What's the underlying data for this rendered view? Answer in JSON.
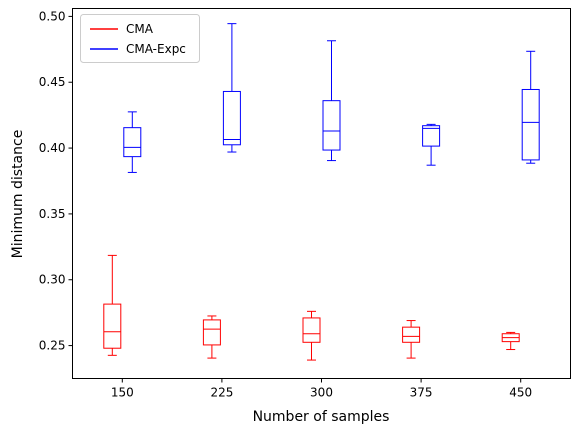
{
  "chart_data": {
    "type": "box",
    "xlabel": "Number of samples",
    "ylabel": "Minimum distance",
    "categories": [
      "150",
      "225",
      "300",
      "375",
      "450"
    ],
    "ylim": [
      0.225,
      0.506
    ],
    "yticks": [
      "0.25",
      "0.30",
      "0.35",
      "0.40",
      "0.45",
      "0.50"
    ],
    "legend_position": "top-left",
    "grid": false,
    "series": [
      {
        "name": "CMA",
        "color": "#ff0000",
        "boxes": [
          {
            "whislo": 0.2426,
            "q1": 0.248,
            "med": 0.2605,
            "q3": 0.2815,
            "whishi": 0.3185
          },
          {
            "whislo": 0.2405,
            "q1": 0.2505,
            "med": 0.2625,
            "q3": 0.2695,
            "whishi": 0.2725
          },
          {
            "whislo": 0.239,
            "q1": 0.2525,
            "med": 0.259,
            "q3": 0.271,
            "whishi": 0.276
          },
          {
            "whislo": 0.2405,
            "q1": 0.2525,
            "med": 0.257,
            "q3": 0.264,
            "whishi": 0.269
          },
          {
            "whislo": 0.247,
            "q1": 0.253,
            "med": 0.256,
            "q3": 0.259,
            "whishi": 0.26
          }
        ]
      },
      {
        "name": "CMA-Expc",
        "color": "#0000ff",
        "boxes": [
          {
            "whislo": 0.3815,
            "q1": 0.3935,
            "med": 0.4005,
            "q3": 0.4155,
            "whishi": 0.4275
          },
          {
            "whislo": 0.397,
            "q1": 0.4025,
            "med": 0.4065,
            "q3": 0.443,
            "whishi": 0.4945
          },
          {
            "whislo": 0.3905,
            "q1": 0.3985,
            "med": 0.413,
            "q3": 0.436,
            "whishi": 0.4815
          },
          {
            "whislo": 0.387,
            "q1": 0.4015,
            "med": 0.415,
            "q3": 0.417,
            "whishi": 0.418
          },
          {
            "whislo": 0.3885,
            "q1": 0.391,
            "med": 0.4195,
            "q3": 0.4445,
            "whishi": 0.4735
          }
        ]
      }
    ]
  }
}
